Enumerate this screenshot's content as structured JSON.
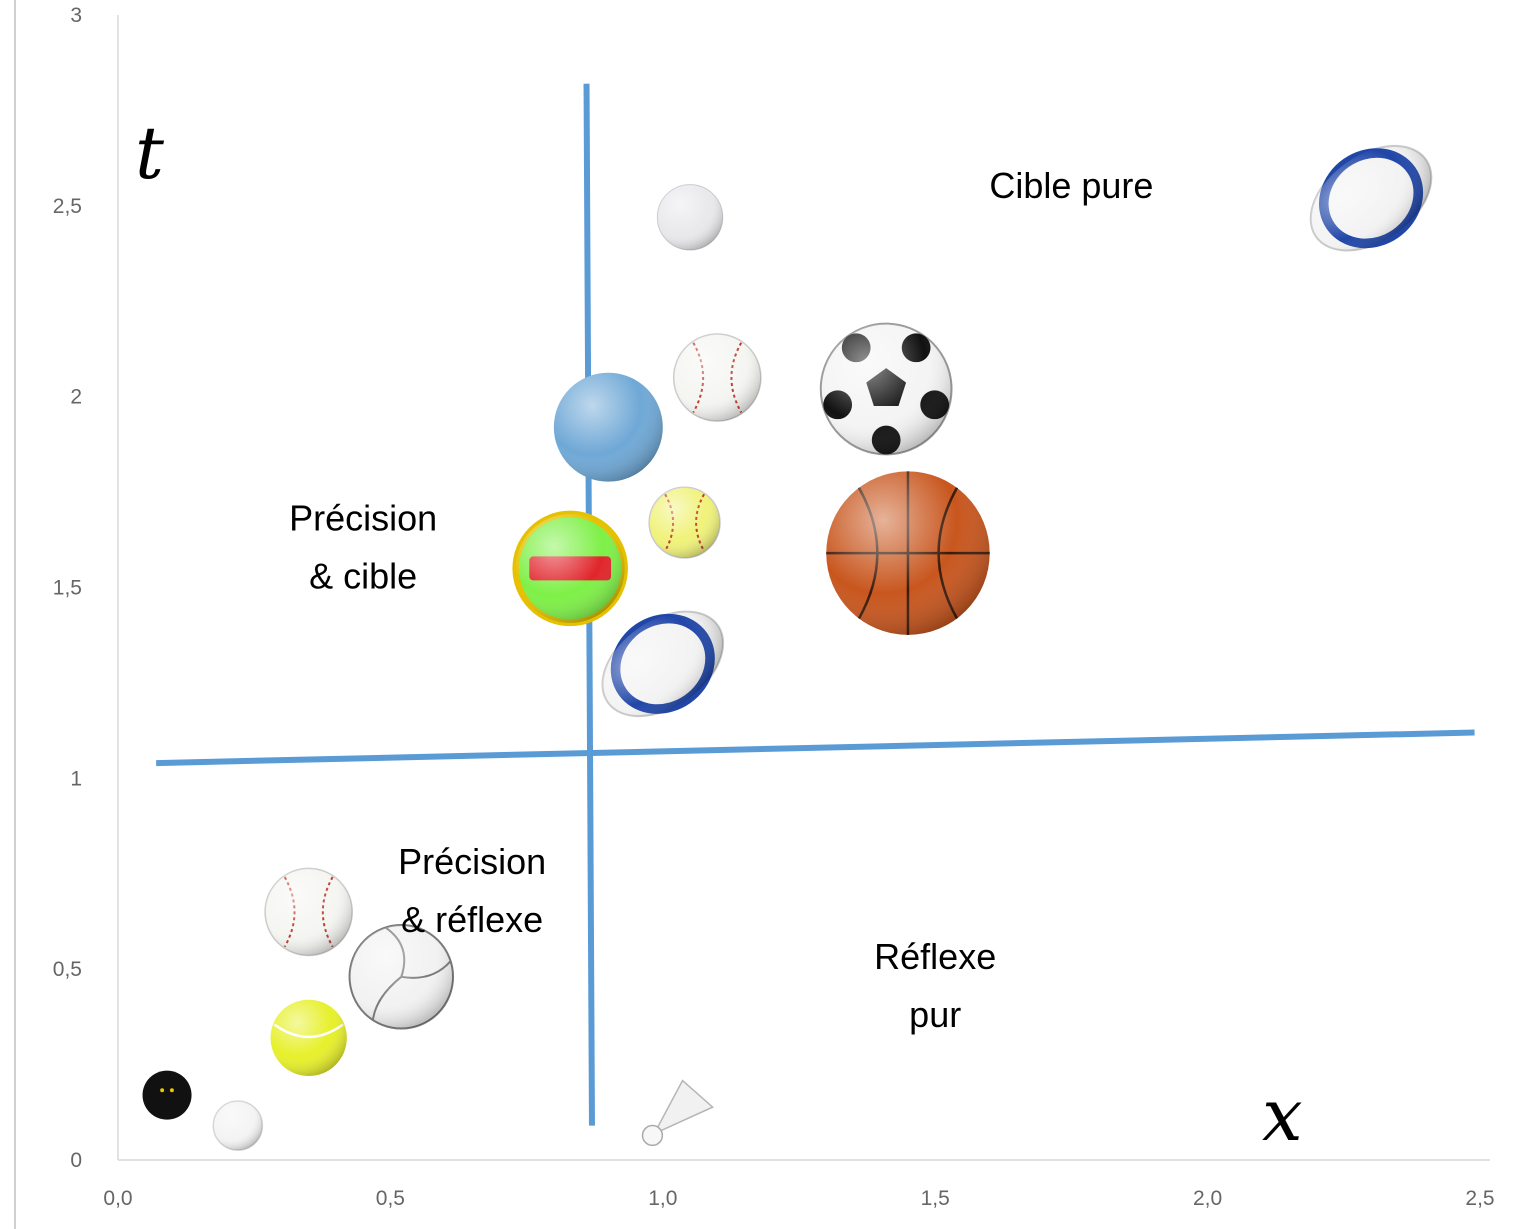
{
  "chart_data": {
    "type": "scatter",
    "title": "",
    "xlabel": "x",
    "ylabel": "t",
    "xlim": [
      0,
      2.5
    ],
    "ylim": [
      0,
      3
    ],
    "x_ticks": [
      "0,0",
      "0,5",
      "1,0",
      "1,5",
      "2,0",
      "2,5"
    ],
    "y_ticks": [
      "0",
      "0,5",
      "1",
      "1,5",
      "2",
      "2,5",
      "3"
    ],
    "grid": false,
    "dividers": {
      "vertical": {
        "x": [
          0.86,
          0.87
        ],
        "t": [
          0.09,
          2.82
        ]
      },
      "horizontal": {
        "x": [
          0.07,
          2.49
        ],
        "t": [
          1.04,
          1.12
        ]
      },
      "color": "#5b9bd5"
    },
    "regions": [
      {
        "id": "cible-pure",
        "lines": [
          "Cible pure"
        ],
        "x": 1.75,
        "t": 2.52
      },
      {
        "id": "precision-cible",
        "lines": [
          "Précision",
          "& cible"
        ],
        "x": 0.45,
        "t": 1.65
      },
      {
        "id": "precision-reflexe",
        "lines": [
          "Précision",
          "& réflexe"
        ],
        "x": 0.65,
        "t": 0.75
      },
      {
        "id": "reflexe-pur",
        "lines": [
          "Réflexe",
          "pur"
        ],
        "x": 1.5,
        "t": 0.5
      }
    ],
    "points": [
      {
        "ball": "rugby-ball",
        "x": 2.3,
        "t": 2.52,
        "size": 0.11
      },
      {
        "ball": "golf-ball",
        "x": 1.05,
        "t": 2.47,
        "size": 0.06
      },
      {
        "ball": "baseball",
        "x": 1.1,
        "t": 2.05,
        "size": 0.08
      },
      {
        "ball": "soccer-ball",
        "x": 1.41,
        "t": 2.02,
        "size": 0.12
      },
      {
        "ball": "lacrosse-ball",
        "x": 0.9,
        "t": 1.92,
        "size": 0.1
      },
      {
        "ball": "softball",
        "x": 1.04,
        "t": 1.67,
        "size": 0.065
      },
      {
        "ball": "basketball",
        "x": 1.45,
        "t": 1.59,
        "size": 0.15
      },
      {
        "ball": "handball",
        "x": 0.83,
        "t": 1.55,
        "size": 0.1
      },
      {
        "ball": "rugby-ball",
        "x": 1.0,
        "t": 1.3,
        "size": 0.11
      },
      {
        "ball": "pelota",
        "x": 0.35,
        "t": 0.65,
        "size": 0.08
      },
      {
        "ball": "volleyball",
        "x": 0.52,
        "t": 0.48,
        "size": 0.095
      },
      {
        "ball": "tennis-ball",
        "x": 0.35,
        "t": 0.32,
        "size": 0.07
      },
      {
        "ball": "squash-ball",
        "x": 0.09,
        "t": 0.17,
        "size": 0.045
      },
      {
        "ball": "ping-pong-ball",
        "x": 0.22,
        "t": 0.09,
        "size": 0.045
      },
      {
        "ball": "shuttlecock",
        "x": 1.02,
        "t": 0.12,
        "size": 0.065
      }
    ],
    "colors": {
      "divider": "#5b9bd5",
      "axis": "#d9d9d9",
      "tick_label": "#666666",
      "basketball": "#c8561e",
      "tennis-ball": "#e7f02b",
      "handball": "#7ef047",
      "lacrosse-ball": "#6fa8d6",
      "soccer-ball": "#f4f4f4",
      "rugby-ball": "#2046a8"
    }
  }
}
